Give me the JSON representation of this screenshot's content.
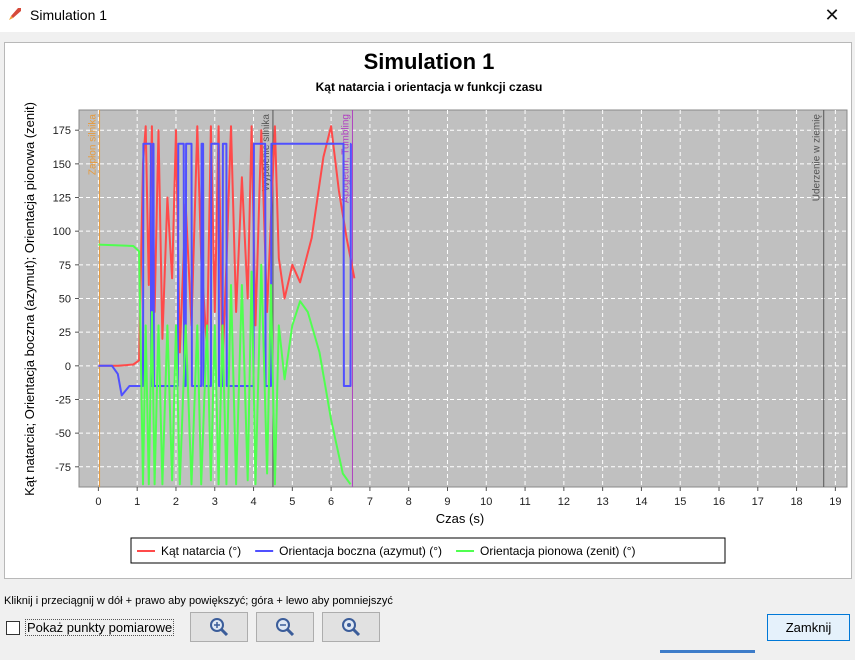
{
  "window": {
    "title": "Simulation 1",
    "close_glyph": "✕"
  },
  "chart_header": {
    "title": "Simulation 1",
    "subtitle": "Kąt natarcia i orientacja w funkcji czasu"
  },
  "footer": {
    "hint": "Kliknij i przeciągnij w dół + prawo aby powiększyć; góra + lewo aby pomniejszyć",
    "show_points_label": "Pokaż punkty pomiarowe",
    "close_label": "Zamknij",
    "zoom_icons": [
      "zoom-in-icon",
      "zoom-out-icon",
      "zoom-reset-icon"
    ]
  },
  "chart_data": {
    "type": "line",
    "xlabel": "Czas (s)",
    "ylabel": "Kąt natarcia; Orientacja boczna (azymut); Orientacja pionowa (zenit)",
    "xlim": [
      -0.5,
      19.3
    ],
    "ylim": [
      -90,
      190
    ],
    "xticks": [
      0,
      1,
      2,
      3,
      4,
      5,
      6,
      7,
      8,
      9,
      10,
      11,
      12,
      13,
      14,
      15,
      16,
      17,
      18,
      19
    ],
    "yticks": [
      -75,
      -50,
      -25,
      0,
      25,
      50,
      75,
      100,
      125,
      150,
      175
    ],
    "grid": true,
    "plot_background": "#c0c0c0",
    "legend_placement": "bottom-center",
    "events": [
      {
        "label": "Zapłon silnika",
        "x": 0.03,
        "color": "#e69a3c"
      },
      {
        "label": "Wypalenie silnika",
        "x": 4.5,
        "color": "#555555"
      },
      {
        "label": "Apogeum, Tumbling",
        "x": 6.55,
        "color": "#b040c0"
      },
      {
        "label": "Uderzenie w ziemię",
        "x": 18.7,
        "color": "#555555"
      }
    ],
    "series": [
      {
        "name": "Kąt natarcia (°)",
        "color": "#ff4a4a",
        "x": [
          0,
          0.5,
          0.9,
          1.05,
          1.15,
          1.22,
          1.3,
          1.38,
          1.45,
          1.55,
          1.65,
          1.78,
          1.9,
          2.0,
          2.1,
          2.25,
          2.4,
          2.55,
          2.65,
          2.8,
          2.9,
          3.0,
          3.1,
          3.2,
          3.3,
          3.42,
          3.55,
          3.7,
          3.85,
          3.95,
          4.05,
          4.2,
          4.35,
          4.45,
          4.55,
          4.65,
          4.8,
          5.0,
          5.2,
          5.5,
          5.8,
          6.0,
          6.2,
          6.4,
          6.6
        ],
        "values": [
          0,
          0,
          1,
          4,
          150,
          178,
          60,
          178,
          40,
          175,
          20,
          125,
          65,
          175,
          10,
          120,
          30,
          178,
          80,
          12,
          178,
          40,
          178,
          0,
          75,
          178,
          40,
          140,
          50,
          178,
          30,
          175,
          40,
          110,
          178,
          80,
          50,
          75,
          62,
          95,
          155,
          178,
          130,
          95,
          65
        ]
      },
      {
        "name": "Orientacja boczna (azymut) (°)",
        "color": "#5050ff",
        "x": [
          0,
          0.35,
          0.5,
          0.6,
          0.8,
          1.1,
          1.15,
          1.16,
          1.35,
          1.36,
          1.4,
          1.41,
          1.42,
          1.43,
          2.05,
          2.06,
          2.2,
          2.21,
          2.25,
          2.26,
          2.4,
          2.41,
          2.65,
          2.66,
          2.7,
          2.71,
          2.9,
          2.91,
          3.1,
          3.11,
          3.2,
          3.21,
          3.3,
          3.31,
          4.0,
          4.01,
          4.3,
          4.31,
          4.45,
          4.46,
          4.8,
          6.32,
          6.33,
          6.5,
          6.51,
          6.52
        ],
        "values": [
          0,
          0,
          -6,
          -22,
          -15,
          -15,
          -15,
          165,
          165,
          -15,
          -15,
          165,
          165,
          -15,
          -15,
          165,
          165,
          -15,
          -15,
          165,
          165,
          -15,
          -15,
          165,
          165,
          -15,
          -15,
          165,
          165,
          -15,
          -15,
          165,
          165,
          -15,
          -15,
          165,
          165,
          -15,
          -15,
          165,
          165,
          165,
          -15,
          -15,
          165,
          165
        ]
      },
      {
        "name": "Orientacja pionowa (zenit) (°)",
        "color": "#50ff50",
        "x": [
          0,
          0.9,
          1.05,
          1.15,
          1.22,
          1.3,
          1.38,
          1.45,
          1.55,
          1.65,
          1.78,
          1.9,
          2.0,
          2.1,
          2.25,
          2.4,
          2.55,
          2.65,
          2.8,
          2.9,
          3.0,
          3.1,
          3.2,
          3.3,
          3.42,
          3.55,
          3.7,
          3.85,
          3.95,
          4.05,
          4.2,
          4.35,
          4.45,
          4.55,
          4.65,
          4.8,
          5.0,
          5.2,
          5.4,
          5.7,
          6.0,
          6.3,
          6.5
        ],
        "values": [
          90,
          89,
          85,
          -88,
          30,
          -88,
          40,
          -88,
          30,
          -88,
          30,
          -85,
          30,
          -88,
          30,
          -88,
          30,
          -88,
          30,
          -85,
          30,
          -88,
          30,
          -88,
          60,
          -88,
          60,
          -85,
          70,
          -88,
          75,
          -80,
          60,
          -88,
          30,
          -10,
          30,
          48,
          40,
          10,
          -40,
          -80,
          -88
        ]
      }
    ]
  }
}
